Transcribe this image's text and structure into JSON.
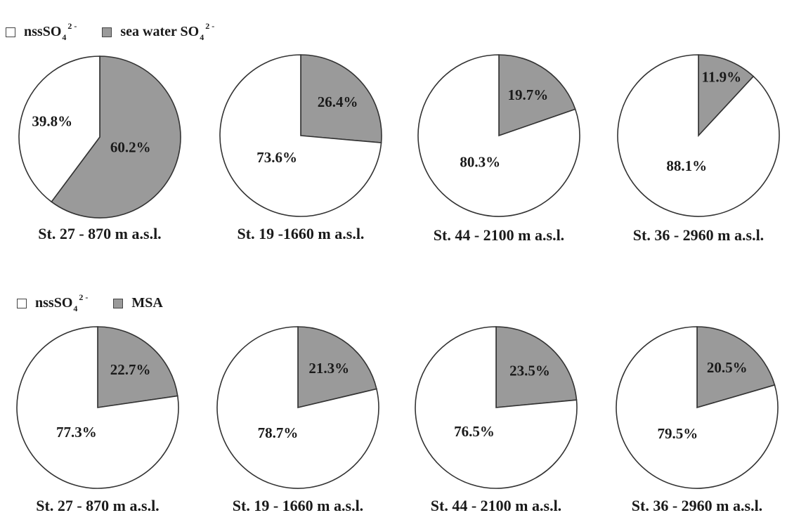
{
  "colors": {
    "sea_water": "#9a9a9a",
    "nss": "#ffffff",
    "msa": "#9a9a9a",
    "stroke": "#333333"
  },
  "legend_top": {
    "item1": {
      "label_main": "nssSO",
      "label_sub": "4",
      "label_sup": "2 -",
      "color": "#ffffff"
    },
    "item2": {
      "label_main": "sea water SO",
      "label_sub": "4",
      "label_sup": "2 -",
      "color": "#9a9a9a"
    }
  },
  "legend_bottom": {
    "item1": {
      "label_main": "nssSO",
      "label_sub": "4",
      "label_sup": "2 -",
      "color": "#ffffff"
    },
    "item2": {
      "label_main": "MSA",
      "color": "#9a9a9a"
    }
  },
  "chart_data": [
    {
      "type": "pie",
      "row": "top",
      "caption": "St. 27 - 870 m a.s.l.",
      "slices": [
        {
          "label": "60.2%",
          "value": 60.2,
          "color": "#9a9a9a"
        },
        {
          "label": "39.8%",
          "value": 39.8,
          "color": "#ffffff"
        }
      ]
    },
    {
      "type": "pie",
      "row": "top",
      "caption": "St. 19 -1660 m a.s.l.",
      "slices": [
        {
          "label": "26.4%",
          "value": 26.4,
          "color": "#9a9a9a"
        },
        {
          "label": "73.6%",
          "value": 73.6,
          "color": "#ffffff"
        }
      ]
    },
    {
      "type": "pie",
      "row": "top",
      "caption": "St. 44 - 2100 m a.s.l.",
      "slices": [
        {
          "label": "19.7%",
          "value": 19.7,
          "color": "#9a9a9a"
        },
        {
          "label": "80.3%",
          "value": 80.3,
          "color": "#ffffff"
        }
      ]
    },
    {
      "type": "pie",
      "row": "top",
      "caption": "St. 36 - 2960 m a.s.l.",
      "slices": [
        {
          "label": "11.9%",
          "value": 11.9,
          "color": "#9a9a9a"
        },
        {
          "label": "88.1%",
          "value": 88.1,
          "color": "#ffffff"
        }
      ]
    },
    {
      "type": "pie",
      "row": "bottom",
      "caption": "St. 27 - 870 m a.s.l.",
      "slices": [
        {
          "label": "22.7%",
          "value": 22.7,
          "color": "#9a9a9a"
        },
        {
          "label": "77.3%",
          "value": 77.3,
          "color": "#ffffff"
        }
      ]
    },
    {
      "type": "pie",
      "row": "bottom",
      "caption": "St. 19 - 1660 m a.s.l.",
      "slices": [
        {
          "label": "21.3%",
          "value": 21.3,
          "color": "#9a9a9a"
        },
        {
          "label": "78.7%",
          "value": 78.7,
          "color": "#ffffff"
        }
      ]
    },
    {
      "type": "pie",
      "row": "bottom",
      "caption": "St. 44 - 2100 m a.s.l.",
      "slices": [
        {
          "label": "23.5%",
          "value": 23.5,
          "color": "#9a9a9a"
        },
        {
          "label": "76.5%",
          "value": 76.5,
          "color": "#ffffff"
        }
      ]
    },
    {
      "type": "pie",
      "row": "bottom",
      "caption": "St. 36 - 2960 m a.s.l.",
      "slices": [
        {
          "label": "20.5%",
          "value": 20.5,
          "color": "#9a9a9a"
        },
        {
          "label": "79.5%",
          "value": 79.5,
          "color": "#ffffff"
        }
      ]
    }
  ]
}
